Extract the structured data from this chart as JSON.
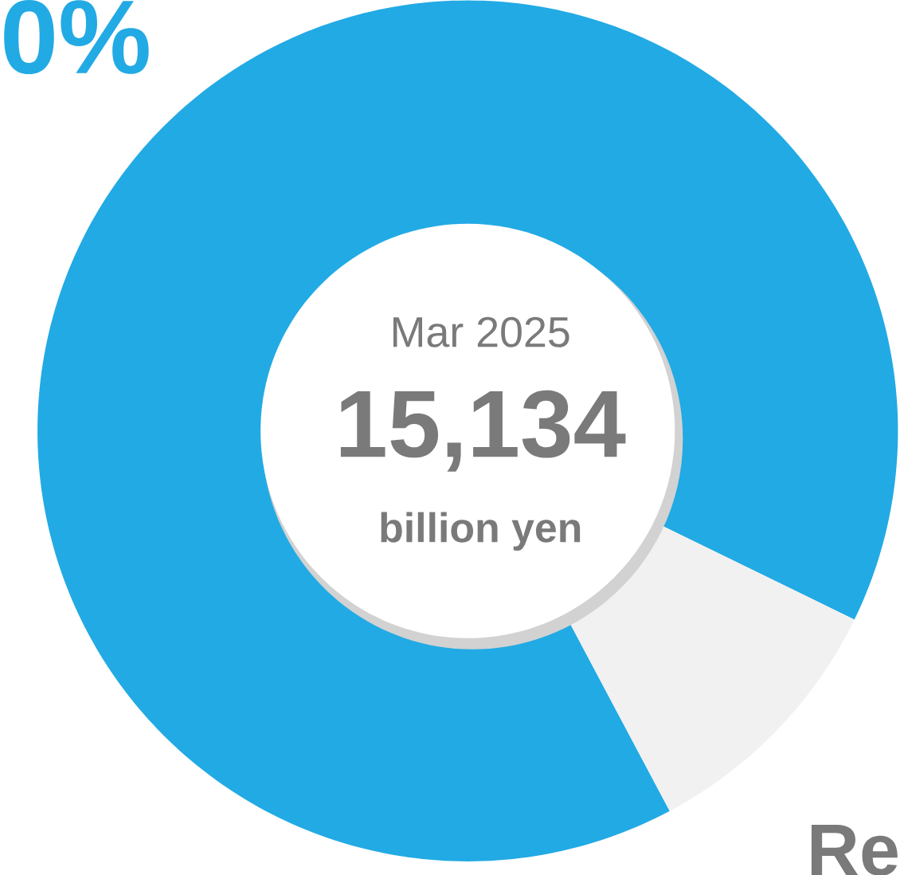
{
  "chart_data": {
    "type": "donut",
    "categories": [
      null,
      null
    ],
    "values": [
      90,
      10
    ],
    "colors": [
      "#22aae4",
      "#f1f1f1"
    ],
    "annotations": [
      "Mar 2025",
      "15,134",
      "billion yen",
      "0%",
      "Re"
    ]
  }
}
